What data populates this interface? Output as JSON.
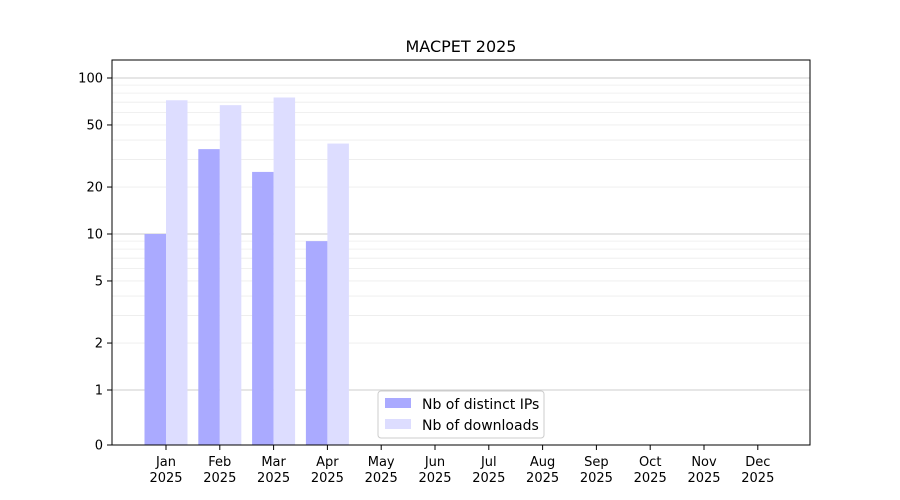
{
  "chart_data": {
    "type": "bar",
    "title": "MACPET 2025",
    "xlabel": "",
    "ylabel": "",
    "y_scale": "symlog",
    "ylim": [
      0,
      130
    ],
    "y_ticks": [
      0,
      1,
      2,
      5,
      10,
      20,
      50,
      100
    ],
    "grid": "horizontal",
    "legend_position": "lower-center",
    "categories": [
      "Jan\n2025",
      "Feb\n2025",
      "Mar\n2025",
      "Apr\n2025",
      "May\n2025",
      "Jun\n2025",
      "Jul\n2025",
      "Aug\n2025",
      "Sep\n2025",
      "Oct\n2025",
      "Nov\n2025",
      "Dec\n2025"
    ],
    "series": [
      {
        "name": "Nb of distinct IPs",
        "color": "#aaaaff",
        "values": [
          10,
          35,
          25,
          9,
          0,
          0,
          0,
          0,
          0,
          0,
          0,
          0
        ]
      },
      {
        "name": "Nb of downloads",
        "color": "#ddddff",
        "values": [
          72,
          67,
          75,
          38,
          0,
          0,
          0,
          0,
          0,
          0,
          0,
          0
        ]
      }
    ]
  }
}
